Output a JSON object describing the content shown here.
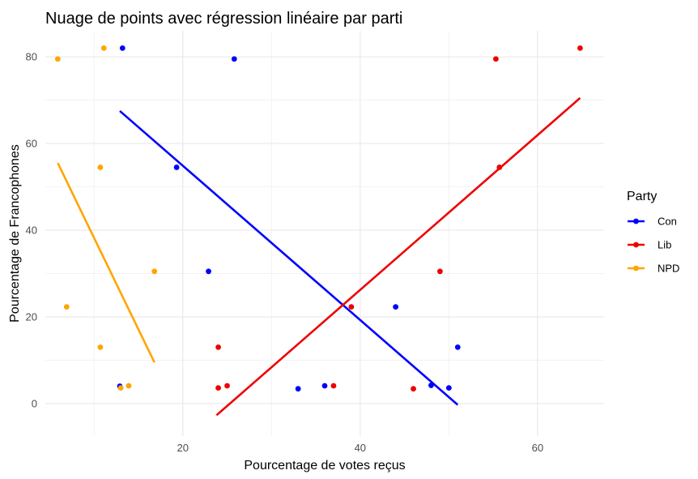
{
  "chart_data": {
    "type": "scatter",
    "title": "Nuage de points avec régression linéaire par parti",
    "xlabel": "Pourcentage de votes reçus",
    "ylabel": "Pourcentage de Francophones",
    "xlim": [
      4.5,
      67.5
    ],
    "ylim": [
      -7.5,
      86
    ],
    "x_ticks": [
      20,
      40,
      60
    ],
    "y_ticks": [
      0,
      20,
      40,
      60,
      80
    ],
    "grid": true,
    "legend_position": "right",
    "legend_title": "Party",
    "series": [
      {
        "name": "Con",
        "color": "#0000ff",
        "points": [
          {
            "x": 13.2,
            "y": 82
          },
          {
            "x": 25.8,
            "y": 79.5
          },
          {
            "x": 19.3,
            "y": 54.5
          },
          {
            "x": 22.9,
            "y": 30.5
          },
          {
            "x": 44,
            "y": 22.3
          },
          {
            "x": 51,
            "y": 13
          },
          {
            "x": 12.9,
            "y": 4
          },
          {
            "x": 33,
            "y": 3.4
          },
          {
            "x": 36,
            "y": 4.1
          },
          {
            "x": 48,
            "y": 4.2
          },
          {
            "x": 50,
            "y": 3.6
          }
        ],
        "regression": [
          {
            "x": 12.9,
            "y": 67.5
          },
          {
            "x": 51,
            "y": -0.3
          }
        ]
      },
      {
        "name": "Lib",
        "color": "#ee0000",
        "points": [
          {
            "x": 55.3,
            "y": 79.5
          },
          {
            "x": 64.8,
            "y": 82
          },
          {
            "x": 55.7,
            "y": 54.5
          },
          {
            "x": 49,
            "y": 30.5
          },
          {
            "x": 39,
            "y": 22.3
          },
          {
            "x": 24,
            "y": 13
          },
          {
            "x": 24,
            "y": 3.6
          },
          {
            "x": 25,
            "y": 4.1
          },
          {
            "x": 37,
            "y": 4.1
          },
          {
            "x": 46,
            "y": 3.4
          }
        ],
        "regression": [
          {
            "x": 23.8,
            "y": -2.7
          },
          {
            "x": 64.8,
            "y": 70.5
          }
        ]
      },
      {
        "name": "NPD",
        "color": "#ffa500",
        "points": [
          {
            "x": 5.9,
            "y": 79.5
          },
          {
            "x": 11.1,
            "y": 82
          },
          {
            "x": 10.7,
            "y": 54.5
          },
          {
            "x": 16.8,
            "y": 30.5
          },
          {
            "x": 6.9,
            "y": 22.3
          },
          {
            "x": 10.7,
            "y": 13
          },
          {
            "x": 13.9,
            "y": 4.1
          },
          {
            "x": 13,
            "y": 3.6
          }
        ],
        "regression": [
          {
            "x": 5.9,
            "y": 55.5
          },
          {
            "x": 16.8,
            "y": 9.5
          }
        ]
      }
    ]
  }
}
